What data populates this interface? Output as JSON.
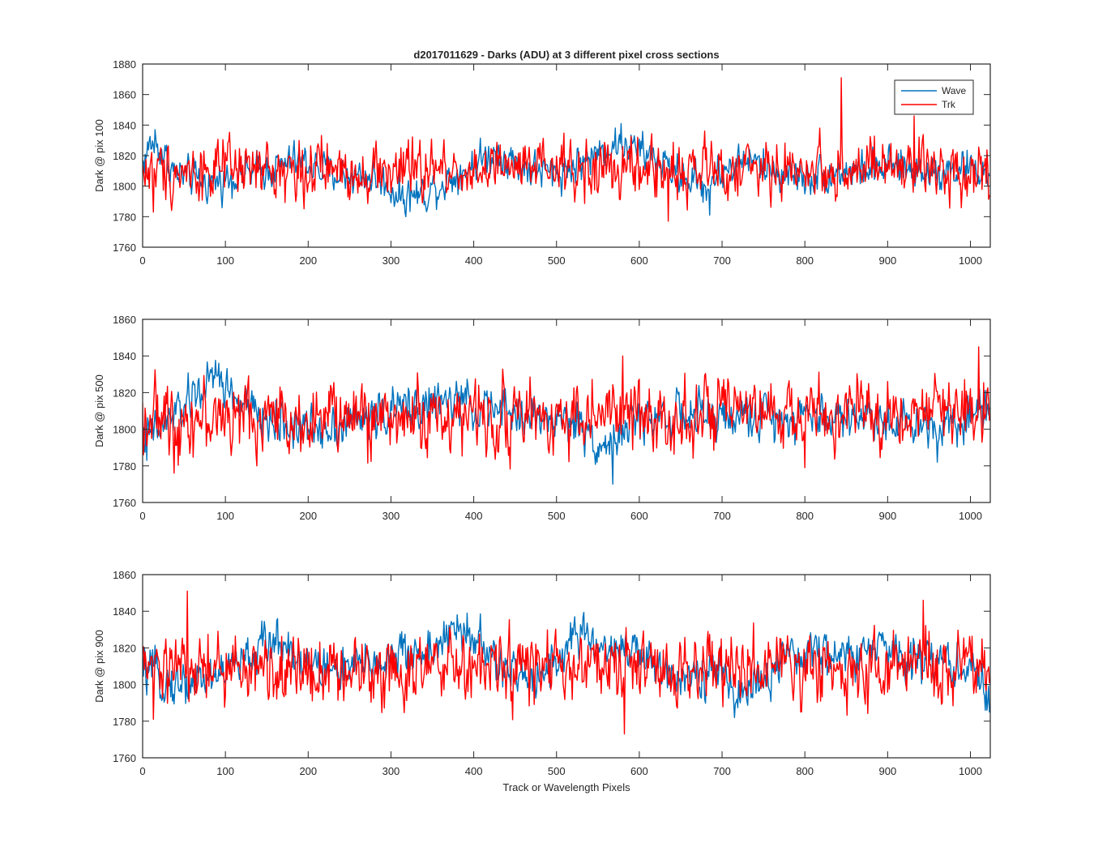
{
  "figure_title": "d2017011629 - Darks (ADU) at 3 different pixel cross sections",
  "xlabel": "Track or Wavelength Pixels",
  "legend": [
    {
      "name": "Wave",
      "color": "#0072bd"
    },
    {
      "name": "Trk",
      "color": "#ff0000"
    }
  ],
  "chart_data": [
    {
      "type": "line",
      "title": "d2017011629 - Darks (ADU) at 3 different pixel cross sections",
      "ylabel": "Dark @ pix 100",
      "xlabel": "",
      "xlim": [
        0,
        1024
      ],
      "ylim": [
        1760,
        1880
      ],
      "xticks": [
        0,
        100,
        200,
        300,
        400,
        500,
        600,
        700,
        800,
        900,
        1000
      ],
      "yticks": [
        1760,
        1780,
        1800,
        1820,
        1840,
        1860,
        1880
      ],
      "xtick_labels": [
        "0",
        "100",
        "200",
        "300",
        "400",
        "500",
        "600",
        "700",
        "800",
        "900",
        "1000"
      ],
      "ytick_labels": [
        "1760",
        "1780",
        "1800",
        "1820",
        "1840",
        "1860",
        "1880"
      ],
      "legend_position": "top-right",
      "series": [
        {
          "name": "Wave",
          "color": "#0072bd",
          "mean": 1810,
          "noise": 7,
          "trend": [
            [
              0,
              1815
            ],
            [
              10,
              1828
            ],
            [
              20,
              1825
            ],
            [
              40,
              1808
            ],
            [
              80,
              1802
            ],
            [
              120,
              1808
            ],
            [
              160,
              1812
            ],
            [
              190,
              1817
            ],
            [
              230,
              1808
            ],
            [
              280,
              1806
            ],
            [
              310,
              1794
            ],
            [
              340,
              1795
            ],
            [
              380,
              1808
            ],
            [
              410,
              1818
            ],
            [
              430,
              1822
            ],
            [
              460,
              1812
            ],
            [
              500,
              1808
            ],
            [
              540,
              1818
            ],
            [
              560,
              1826
            ],
            [
              580,
              1828
            ],
            [
              620,
              1818
            ],
            [
              640,
              1810
            ],
            [
              680,
              1800
            ],
            [
              700,
              1810
            ],
            [
              730,
              1818
            ],
            [
              760,
              1810
            ],
            [
              800,
              1806
            ],
            [
              850,
              1810
            ],
            [
              900,
              1812
            ],
            [
              950,
              1810
            ],
            [
              1000,
              1812
            ],
            [
              1024,
              1807
            ]
          ],
          "spikes": [
            [
              15,
              1837
            ],
            [
              318,
              1780
            ],
            [
              578,
              1841
            ],
            [
              685,
              1781
            ]
          ]
        },
        {
          "name": "Trk",
          "color": "#ff0000",
          "mean": 1811,
          "noise": 11,
          "trend": [
            [
              0,
              1810
            ],
            [
              1024,
              1811
            ]
          ],
          "spikes": [
            [
              844,
              1871
            ],
            [
              932,
              1846
            ],
            [
              635,
              1777
            ],
            [
              13,
              1783
            ]
          ]
        }
      ]
    },
    {
      "type": "line",
      "ylabel": "Dark @ pix 500",
      "xlabel": "",
      "xlim": [
        0,
        1024
      ],
      "ylim": [
        1760,
        1860
      ],
      "xticks": [
        0,
        100,
        200,
        300,
        400,
        500,
        600,
        700,
        800,
        900,
        1000
      ],
      "yticks": [
        1760,
        1780,
        1800,
        1820,
        1840,
        1860
      ],
      "xtick_labels": [
        "0",
        "100",
        "200",
        "300",
        "400",
        "500",
        "600",
        "700",
        "800",
        "900",
        "1000"
      ],
      "ytick_labels": [
        "1760",
        "1780",
        "1800",
        "1820",
        "1840",
        "1860"
      ],
      "series": [
        {
          "name": "Wave",
          "color": "#0072bd",
          "mean": 1808,
          "noise": 7,
          "trend": [
            [
              0,
              1795
            ],
            [
              20,
              1800
            ],
            [
              50,
              1812
            ],
            [
              70,
              1822
            ],
            [
              90,
              1828
            ],
            [
              110,
              1818
            ],
            [
              140,
              1806
            ],
            [
              200,
              1800
            ],
            [
              260,
              1805
            ],
            [
              320,
              1812
            ],
            [
              380,
              1815
            ],
            [
              420,
              1810
            ],
            [
              480,
              1806
            ],
            [
              520,
              1805
            ],
            [
              560,
              1790
            ],
            [
              580,
              1800
            ],
            [
              620,
              1808
            ],
            [
              700,
              1806
            ],
            [
              800,
              1808
            ],
            [
              900,
              1806
            ],
            [
              950,
              1802
            ],
            [
              1000,
              1808
            ],
            [
              1024,
              1815
            ]
          ],
          "spikes": [
            [
              92,
              1836
            ],
            [
              568,
              1770
            ],
            [
              5,
              1783
            ],
            [
              960,
              1782
            ]
          ]
        },
        {
          "name": "Trk",
          "color": "#ff0000",
          "mean": 1808,
          "noise": 11,
          "trend": [
            [
              0,
              1806
            ],
            [
              900,
              1808
            ],
            [
              1024,
              1813
            ]
          ],
          "spikes": [
            [
              38,
              1776
            ],
            [
              1010,
              1845
            ],
            [
              580,
              1840
            ],
            [
              800,
              1779
            ]
          ]
        }
      ]
    },
    {
      "type": "line",
      "ylabel": "Dark @ pix 900",
      "xlabel": "Track or Wavelength Pixels",
      "xlim": [
        0,
        1024
      ],
      "ylim": [
        1760,
        1860
      ],
      "xticks": [
        0,
        100,
        200,
        300,
        400,
        500,
        600,
        700,
        800,
        900,
        1000
      ],
      "yticks": [
        1760,
        1780,
        1800,
        1820,
        1840,
        1860
      ],
      "xtick_labels": [
        "0",
        "100",
        "200",
        "300",
        "400",
        "500",
        "600",
        "700",
        "800",
        "900",
        "1000"
      ],
      "ytick_labels": [
        "1760",
        "1780",
        "1800",
        "1820",
        "1840",
        "1860"
      ],
      "series": [
        {
          "name": "Wave",
          "color": "#0072bd",
          "mean": 1810,
          "noise": 7,
          "trend": [
            [
              0,
              1808
            ],
            [
              40,
              1800
            ],
            [
              80,
              1804
            ],
            [
              120,
              1812
            ],
            [
              150,
              1822
            ],
            [
              170,
              1824
            ],
            [
              200,
              1810
            ],
            [
              250,
              1808
            ],
            [
              300,
              1815
            ],
            [
              340,
              1818
            ],
            [
              380,
              1828
            ],
            [
              400,
              1826
            ],
            [
              430,
              1810
            ],
            [
              460,
              1803
            ],
            [
              500,
              1812
            ],
            [
              520,
              1826
            ],
            [
              560,
              1820
            ],
            [
              580,
              1822
            ],
            [
              620,
              1808
            ],
            [
              700,
              1806
            ],
            [
              720,
              1794
            ],
            [
              760,
              1806
            ],
            [
              800,
              1818
            ],
            [
              850,
              1815
            ],
            [
              900,
              1820
            ],
            [
              950,
              1814
            ],
            [
              1000,
              1808
            ],
            [
              1024,
              1794
            ]
          ],
          "spikes": [
            [
              392,
              1839
            ],
            [
              522,
              1837
            ],
            [
              715,
              1782
            ],
            [
              1020,
              1786
            ]
          ]
        },
        {
          "name": "Trk",
          "color": "#ff0000",
          "mean": 1808,
          "noise": 11,
          "trend": [
            [
              0,
              1808
            ],
            [
              1024,
              1809
            ]
          ],
          "spikes": [
            [
              54,
              1851
            ],
            [
              943,
              1846
            ],
            [
              582,
              1773
            ],
            [
              13,
              1781
            ]
          ]
        }
      ]
    }
  ]
}
